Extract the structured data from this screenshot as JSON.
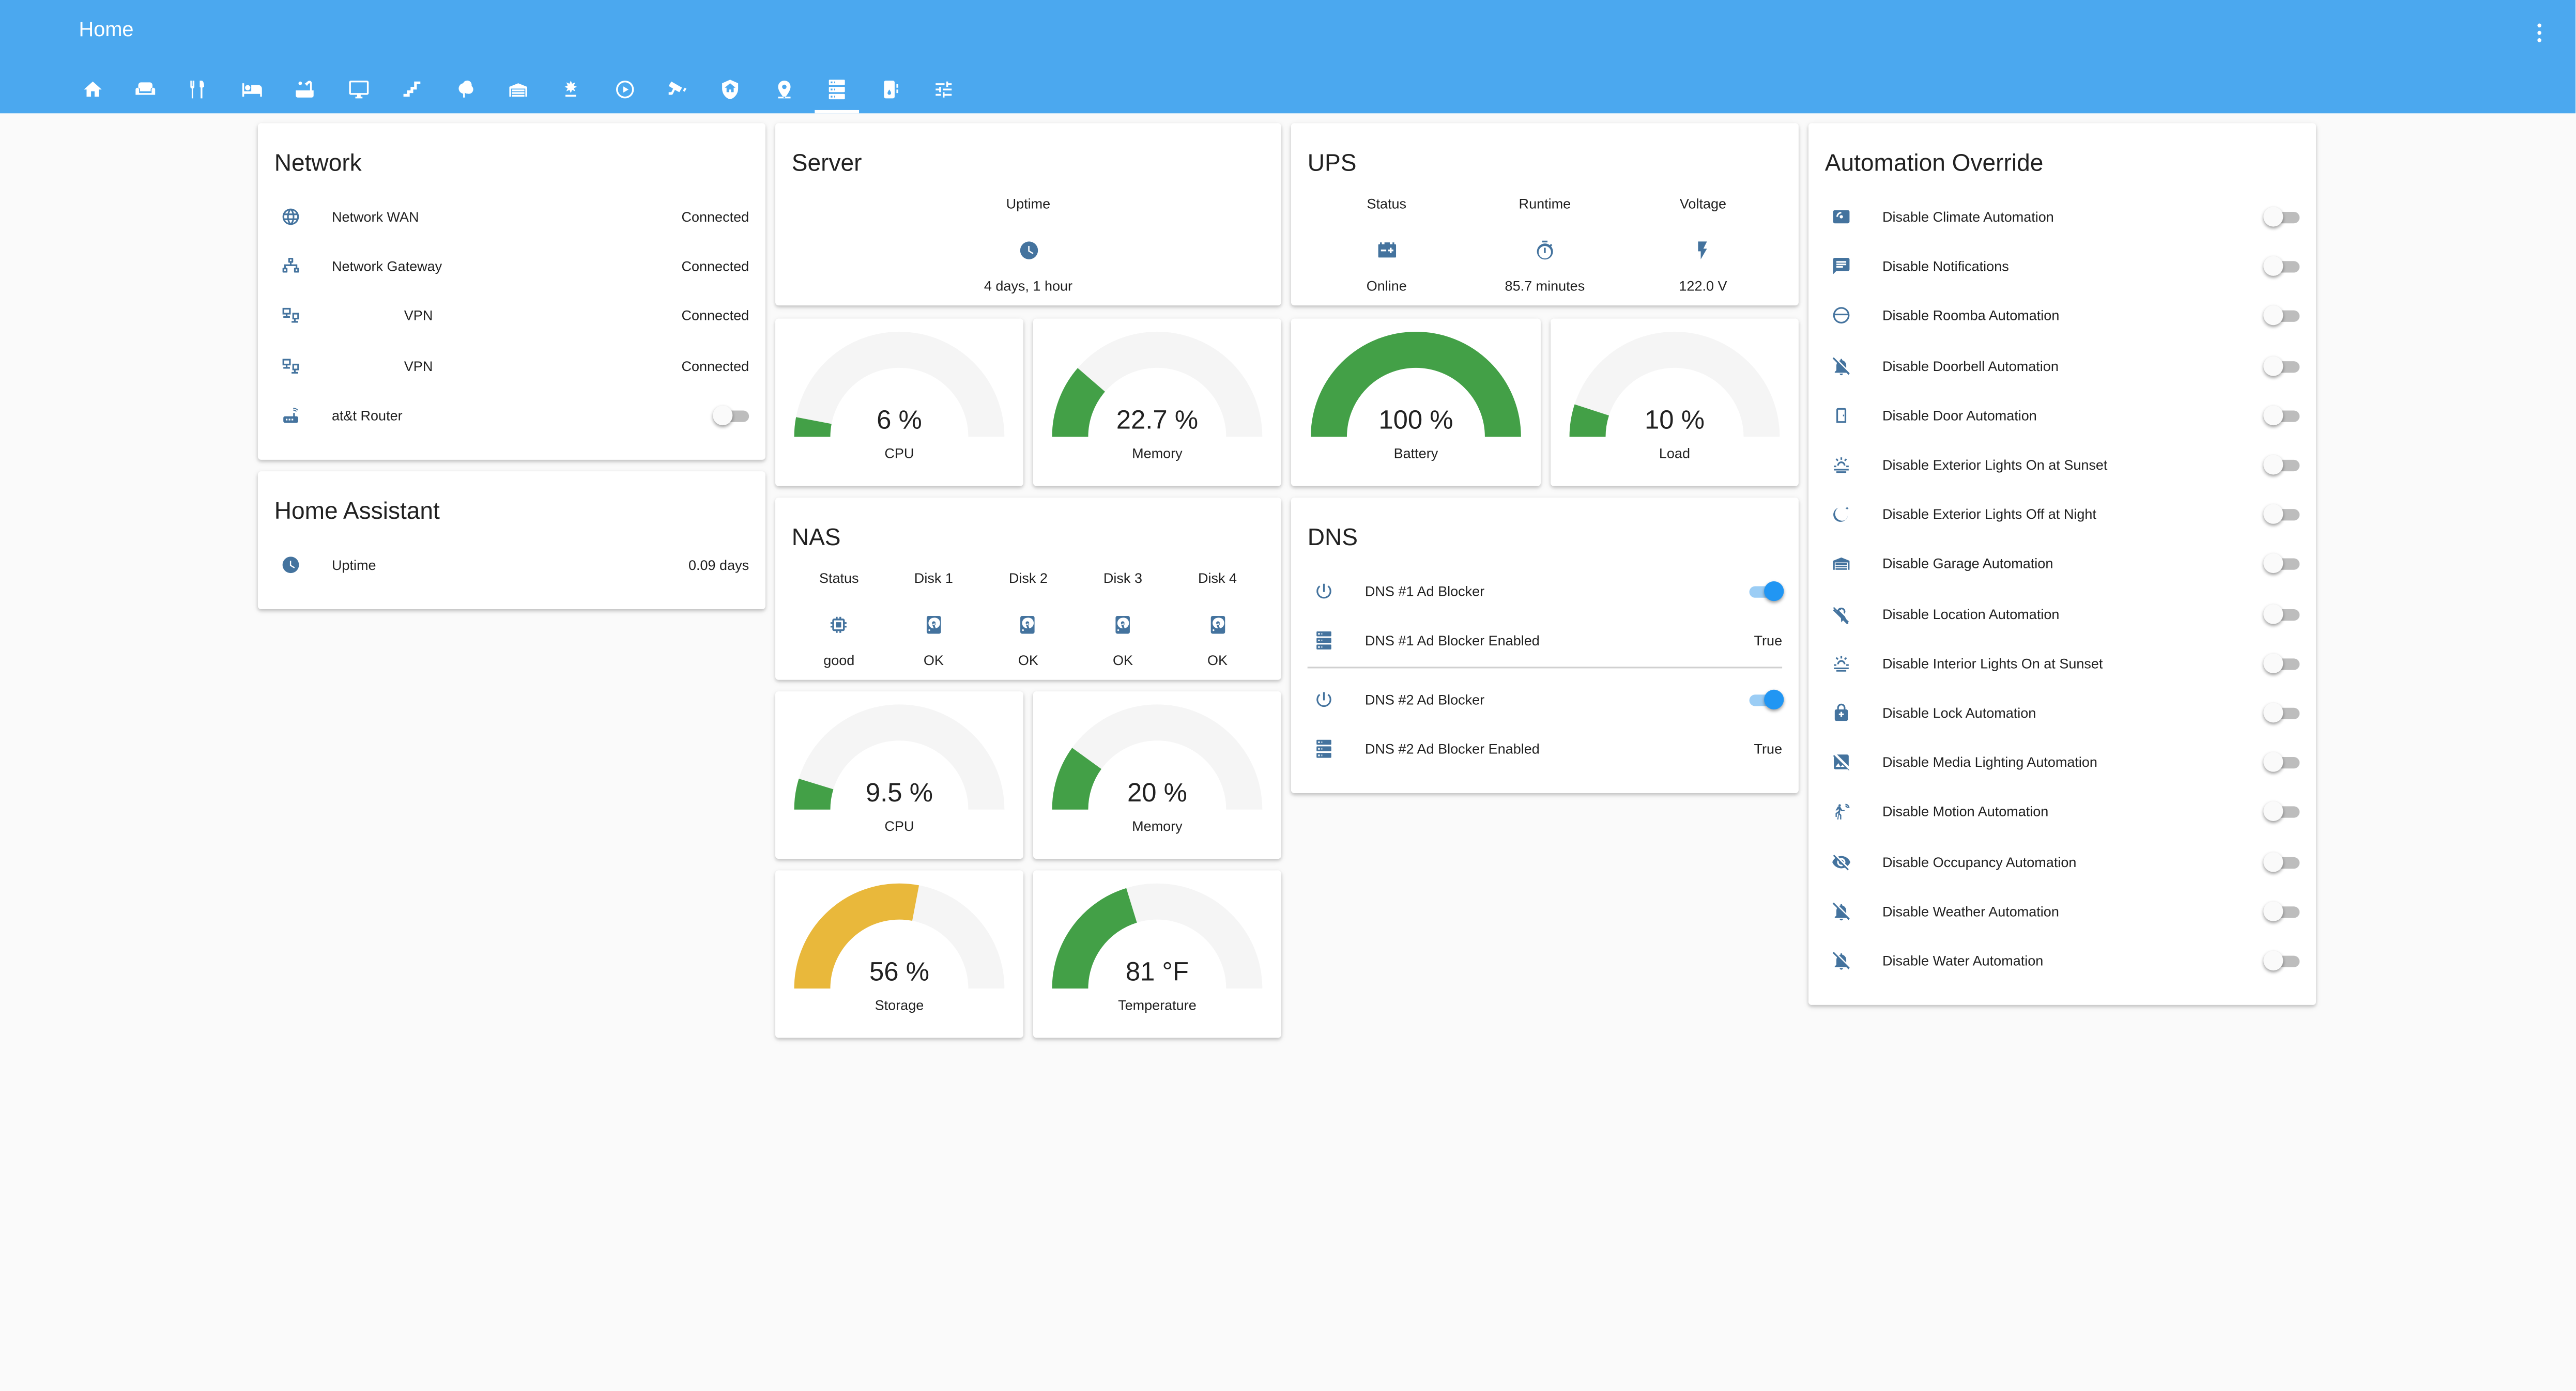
{
  "app": {
    "title": "Home"
  },
  "tabs": [
    {
      "icon": "home-icon"
    },
    {
      "icon": "sofa-icon"
    },
    {
      "icon": "silverware-icon"
    },
    {
      "icon": "bed-icon"
    },
    {
      "icon": "bathtub-icon"
    },
    {
      "icon": "monitor-icon"
    },
    {
      "icon": "stairs-icon"
    },
    {
      "icon": "tree-icon"
    },
    {
      "icon": "garage-icon"
    },
    {
      "icon": "weather-icon"
    },
    {
      "icon": "play-circle-icon"
    },
    {
      "icon": "cctv-icon"
    },
    {
      "icon": "shield-home-icon"
    },
    {
      "icon": "map-marker-icon"
    },
    {
      "icon": "server-icon",
      "active": true
    },
    {
      "icon": "water-heater-icon"
    },
    {
      "icon": "tune-icon"
    }
  ],
  "network": {
    "title": "Network",
    "rows": [
      {
        "icon": "web-icon",
        "label": "Network WAN",
        "value": "Connected"
      },
      {
        "icon": "lan-icon",
        "label": "Network Gateway",
        "value": "Connected"
      },
      {
        "icon": "vpn-icon",
        "label": "VPN",
        "value": "Connected"
      },
      {
        "icon": "vpn-icon",
        "label": "VPN",
        "value": "Connected"
      },
      {
        "icon": "router-icon",
        "label": "at&t Router",
        "toggle": false
      }
    ]
  },
  "home_assistant": {
    "title": "Home Assistant",
    "rows": [
      {
        "icon": "clock-icon",
        "label": "Uptime",
        "value": "0.09 days"
      }
    ]
  },
  "server": {
    "title": "Server",
    "uptime_label": "Uptime",
    "uptime_value": "4 days, 1 hour",
    "gauges": [
      {
        "value": 6,
        "display": "6 %",
        "name": "CPU",
        "min": 0,
        "max": 100,
        "color": "#43a047"
      },
      {
        "value": 22.7,
        "display": "22.7 %",
        "name": "Memory",
        "min": 0,
        "max": 100,
        "color": "#43a047"
      }
    ]
  },
  "ups": {
    "title": "UPS",
    "columns": [
      {
        "label": "Status",
        "icon": "car-battery-icon",
        "value": "Online"
      },
      {
        "label": "Runtime",
        "icon": "timer-icon",
        "value": "85.7 minutes"
      },
      {
        "label": "Voltage",
        "icon": "flash-icon",
        "value": "122.0 V"
      }
    ],
    "gauges": [
      {
        "value": 100,
        "display": "100 %",
        "name": "Battery",
        "min": 0,
        "max": 100,
        "color": "#43a047"
      },
      {
        "value": 10,
        "display": "10 %",
        "name": "Load",
        "min": 0,
        "max": 100,
        "color": "#43a047"
      }
    ]
  },
  "nas": {
    "title": "NAS",
    "columns": [
      {
        "label": "Status",
        "icon": "memory-icon",
        "value": "good"
      },
      {
        "label": "Disk 1",
        "icon": "harddisk-icon",
        "value": "OK"
      },
      {
        "label": "Disk 2",
        "icon": "harddisk-icon",
        "value": "OK"
      },
      {
        "label": "Disk 3",
        "icon": "harddisk-icon",
        "value": "OK"
      },
      {
        "label": "Disk 4",
        "icon": "harddisk-icon",
        "value": "OK"
      }
    ],
    "gauges": [
      {
        "value": 9.5,
        "display": "9.5 %",
        "name": "CPU",
        "min": 0,
        "max": 100,
        "color": "#43a047"
      },
      {
        "value": 20,
        "display": "20 %",
        "name": "Memory",
        "min": 0,
        "max": 100,
        "color": "#43a047"
      },
      {
        "value": 56,
        "display": "56 %",
        "name": "Storage",
        "min": 0,
        "max": 100,
        "color": "#e9b83b"
      },
      {
        "value": 81,
        "display": "81 °F",
        "name": "Temperature",
        "min": 0,
        "max": 200,
        "color": "#43a047"
      }
    ]
  },
  "dns": {
    "title": "DNS",
    "groups": [
      {
        "switch_label": "DNS #1 Ad Blocker",
        "switch_on": true,
        "sensor_label": "DNS #1 Ad Blocker Enabled",
        "sensor_value": "True"
      },
      {
        "switch_label": "DNS #2 Ad Blocker",
        "switch_on": true,
        "sensor_label": "DNS #2 Ad Blocker Enabled",
        "sensor_value": "True"
      }
    ]
  },
  "automation": {
    "title": "Automation Override",
    "rows": [
      {
        "icon": "thermostat-icon",
        "label": "Disable Climate Automation",
        "on": false
      },
      {
        "icon": "message-text-icon",
        "label": "Disable Notifications",
        "on": false
      },
      {
        "icon": "robot-vacuum-icon",
        "label": "Disable Roomba Automation",
        "on": false
      },
      {
        "icon": "bell-off-icon",
        "label": "Disable Doorbell Automation",
        "on": false
      },
      {
        "icon": "door-icon",
        "label": "Disable Door Automation",
        "on": false
      },
      {
        "icon": "weather-sunset-icon",
        "label": "Disable Exterior Lights On at Sunset",
        "on": false
      },
      {
        "icon": "weather-night-icon",
        "label": "Disable Exterior Lights Off at Night",
        "on": false
      },
      {
        "icon": "garage-icon",
        "label": "Disable Garage Automation",
        "on": false
      },
      {
        "icon": "map-marker-off-icon",
        "label": "Disable Location Automation",
        "on": false
      },
      {
        "icon": "weather-sunset-icon",
        "label": "Disable Interior Lights On at Sunset",
        "on": false
      },
      {
        "icon": "lock-icon",
        "label": "Disable Lock Automation",
        "on": false
      },
      {
        "icon": "image-off-icon",
        "label": "Disable Media Lighting Automation",
        "on": false
      },
      {
        "icon": "motion-sensor-icon",
        "label": "Disable Motion Automation",
        "on": false
      },
      {
        "icon": "eye-off-icon",
        "label": "Disable Occupancy Automation",
        "on": false
      },
      {
        "icon": "bell-off-icon",
        "label": "Disable Weather Automation",
        "on": false
      },
      {
        "icon": "bell-off-icon",
        "label": "Disable Water Automation",
        "on": false
      }
    ]
  }
}
